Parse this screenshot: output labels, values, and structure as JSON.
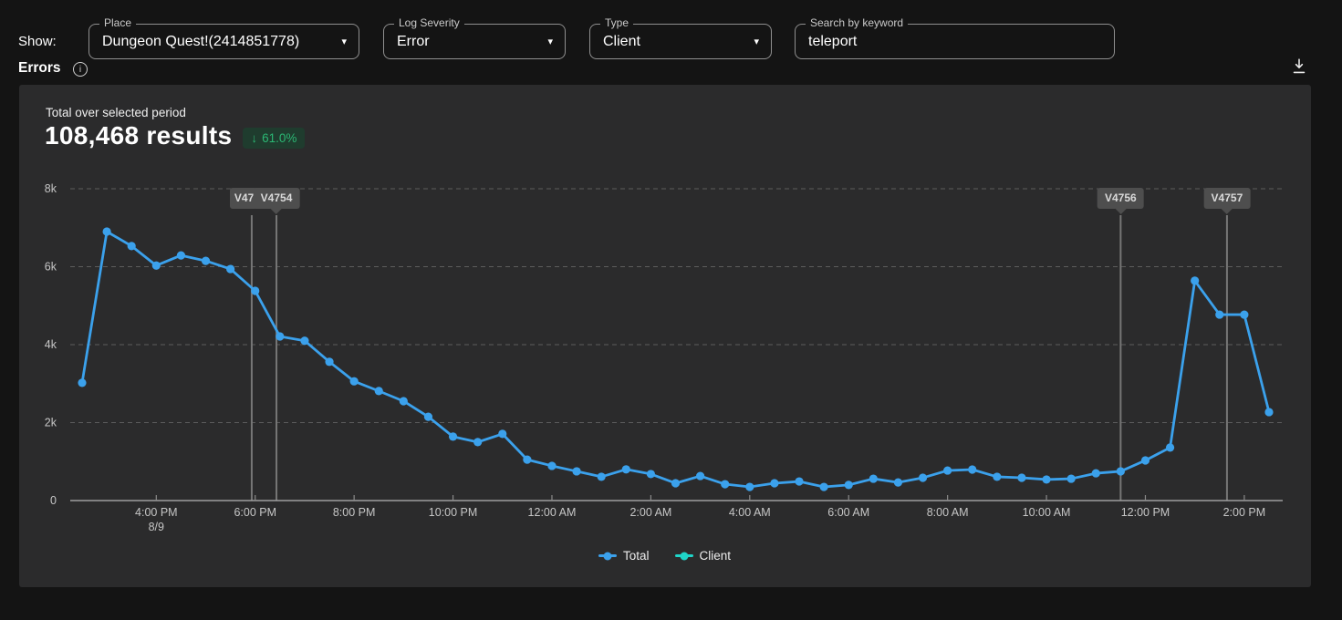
{
  "filters": {
    "show_label": "Show:",
    "place": {
      "label": "Place",
      "value": "Dungeon Quest!(2414851778)"
    },
    "log_severity": {
      "label": "Log Severity",
      "value": "Error"
    },
    "type": {
      "label": "Type",
      "value": "Client"
    },
    "search": {
      "label": "Search by keyword",
      "value": "teleport"
    }
  },
  "section": {
    "title": "Errors",
    "info_icon": "info-icon",
    "download_icon": "download-icon"
  },
  "summary": {
    "subtitle": "Total over selected period",
    "total": "108,468 results",
    "change": {
      "direction": "down",
      "value": "61.0%",
      "badge_bg": "#1f3c2e",
      "badge_color": "#2bb673"
    }
  },
  "chart_data": {
    "type": "line",
    "ylim": [
      0,
      8000
    ],
    "y_tick_labels": [
      "0",
      "2k",
      "4k",
      "6k",
      "8k"
    ],
    "x_tick_labels": [
      "4:00 PM",
      "6:00 PM",
      "8:00 PM",
      "10:00 PM",
      "12:00 AM",
      "2:00 AM",
      "4:00 AM",
      "6:00 AM",
      "8:00 AM",
      "10:00 AM",
      "12:00 PM",
      "2:00 PM"
    ],
    "x_date_label": {
      "text": "8/9",
      "under_tick": "4:00 PM"
    },
    "grid": "dashed-horizontal",
    "legend_position": "bottom-center",
    "legend": [
      {
        "label": "Total",
        "color": "#3ba1ec"
      },
      {
        "label": "Client",
        "color": "#1fd5c9"
      }
    ],
    "series": [
      {
        "name": "Total",
        "color": "#3ba1ec",
        "times": [
          "2:30 PM",
          "3:00 PM",
          "3:30 PM",
          "4:00 PM",
          "4:30 PM",
          "5:00 PM",
          "5:30 PM",
          "6:00 PM",
          "6:30 PM",
          "7:00 PM",
          "7:30 PM",
          "8:00 PM",
          "8:30 PM",
          "9:00 PM",
          "9:30 PM",
          "10:00 PM",
          "10:30 PM",
          "11:00 PM",
          "11:30 PM",
          "12:00 AM",
          "12:30 AM",
          "1:00 AM",
          "1:30 AM",
          "2:00 AM",
          "2:30 AM",
          "3:00 AM",
          "3:30 AM",
          "4:00 AM",
          "4:30 AM",
          "5:00 AM",
          "5:30 AM",
          "6:00 AM",
          "6:30 AM",
          "7:00 AM",
          "7:30 AM",
          "8:00 AM",
          "8:30 AM",
          "9:00 AM",
          "9:30 AM",
          "10:00 AM",
          "10:30 AM",
          "11:00 AM",
          "11:30 AM",
          "12:00 PM",
          "12:30 PM",
          "1:00 PM",
          "1:30 PM",
          "2:00 PM",
          "2:30 PM"
        ],
        "values": [
          3020,
          6900,
          6530,
          6030,
          6290,
          6150,
          5940,
          5380,
          4210,
          4100,
          3560,
          3060,
          2810,
          2550,
          2150,
          1640,
          1500,
          1710,
          1050,
          890,
          750,
          610,
          800,
          680,
          445,
          630,
          420,
          350,
          445,
          490,
          350,
          400,
          560,
          465,
          585,
          770,
          795,
          610,
          585,
          540,
          560,
          700,
          750,
          1030,
          1360,
          5640,
          4770,
          4770,
          2270
        ]
      }
    ],
    "version_markers": [
      {
        "label": "V47",
        "point_index": 6.86,
        "clipped": true
      },
      {
        "label": "V4754",
        "point_index": 7.86
      },
      {
        "label": "V4756",
        "point_index": 42.0
      },
      {
        "label": "V4757",
        "point_index": 46.3
      }
    ]
  }
}
